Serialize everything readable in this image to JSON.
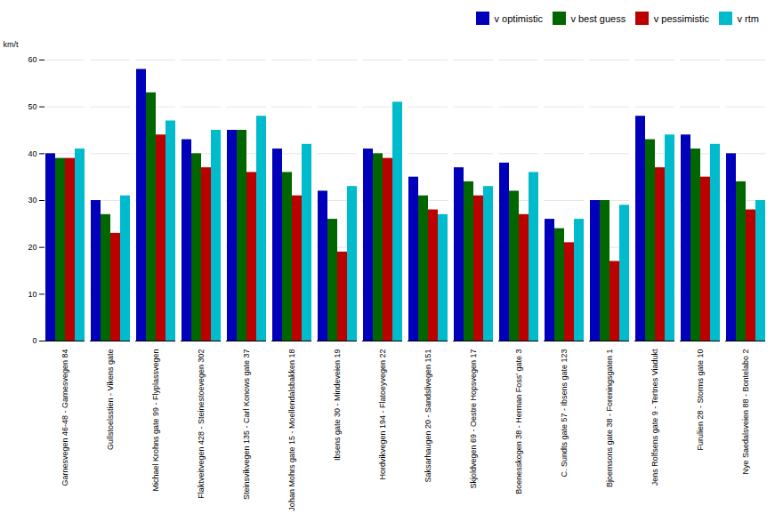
{
  "chart_data": {
    "type": "bar",
    "categories": [
      "Garnesvegen 46-48 - Garnesvegen 84",
      "Gullstoelsstien - Vikens gate",
      "Michael Krohns gate 99 - Flyplassvegen",
      "Flaktveitvegen 428 - Steinestoevegen 302",
      "Steinsvikvegen 135 - Carl Konows gate 37",
      "Johan Mohrs gate 15 - Moellendalsbakken 18",
      "Ibsens gate 30 - Mindeveien 19",
      "Hordvikvegen 194 - Flatoeyvegen 22",
      "Saksarhaugen 20 - Sandslivegen 151",
      "Skjoldvegen 69 - Oestre Hopsvegen 17",
      "Boenesskogen 38 - Herman Foss' gate 3",
      "C. Sundts gate 57 - Ibsens gate 123",
      "Bjoernsons gate 38 - Foreningsgaten 1",
      "Jens Rolfsens gate 9 - Tertnes Viadukt",
      "Furulien 28 - Storms gate 10",
      "Nye Saedalsveien 88 - Bontelabo 2"
    ],
    "series": [
      {
        "name": "v optimistic",
        "color": "#0000bb",
        "values": [
          40,
          30,
          58,
          43,
          45,
          41,
          32,
          41,
          35,
          37,
          38,
          26,
          30,
          48,
          44,
          40
        ]
      },
      {
        "name": "v best guess",
        "color": "#006600",
        "values": [
          39,
          27,
          53,
          40,
          45,
          36,
          26,
          40,
          31,
          34,
          32,
          24,
          30,
          43,
          41,
          34
        ]
      },
      {
        "name": "v pessimistic",
        "color": "#bb0000",
        "values": [
          39,
          23,
          44,
          37,
          36,
          31,
          19,
          39,
          28,
          31,
          27,
          21,
          17,
          37,
          35,
          28
        ]
      },
      {
        "name": "v rtm",
        "color": "#00bbcc",
        "values": [
          41,
          31,
          47,
          45,
          48,
          42,
          33,
          51,
          27,
          33,
          36,
          26,
          29,
          44,
          42,
          30
        ]
      }
    ],
    "ylabel": "km/t",
    "ylim": [
      0,
      60
    ],
    "yticks": [
      0,
      10,
      20,
      30,
      40,
      50,
      60
    ],
    "grid": true,
    "legend": "upper right"
  }
}
